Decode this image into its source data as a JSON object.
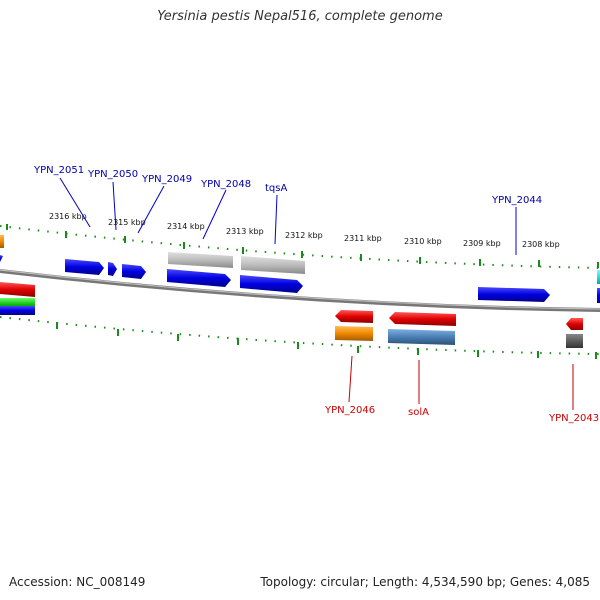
{
  "title": "Yersinia pestis Nepal516, complete genome",
  "footer": {
    "accession": "Accession: NC_008149",
    "topology": "Topology: circular; Length: 4,534,590 bp; Genes: 4,085"
  },
  "colors": {
    "forward_gene": "#0000e0",
    "reverse_gene": "#e00000",
    "rna_gray": "#b8b8b8",
    "orange": "#f08800",
    "steel_blue": "#4a7fb5",
    "green_tick": "#1a8a1a",
    "backbone": "#888888",
    "label_blue": "#0000aa",
    "label_red": "#cc0000"
  },
  "ruler_labels": [
    "2316 kbp",
    "2315 kbp",
    "2314 kbp",
    "2313 kbp",
    "2312 kbp",
    "2311 kbp",
    "2310 kbp",
    "2309 kbp",
    "2308 kbp"
  ],
  "gene_labels_top": [
    "YPN_2051",
    "YPN_2050",
    "YPN_2049",
    "YPN_2048",
    "tqsA",
    "YPN_2044"
  ],
  "gene_labels_bottom": [
    "YPN_2046",
    "solA",
    "YPN_2043"
  ]
}
